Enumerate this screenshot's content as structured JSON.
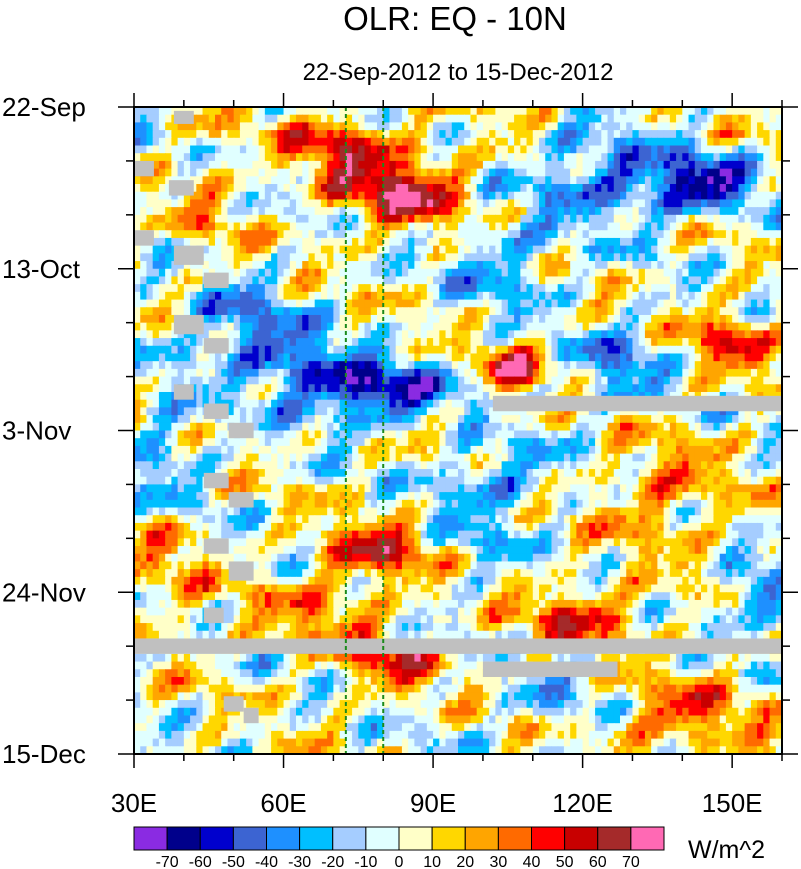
{
  "chart_data": {
    "type": "heatmap",
    "title": "OLR: EQ - 10N",
    "subtitle": "22-Sep-2012 to 15-Dec-2012",
    "x_axis": {
      "range": [
        30,
        160
      ],
      "ticks": [
        {
          "value": 30,
          "label": "30E"
        },
        {
          "value": 60,
          "label": "60E"
        },
        {
          "value": 90,
          "label": "90E"
        },
        {
          "value": 120,
          "label": "120E"
        },
        {
          "value": 150,
          "label": "150E"
        }
      ],
      "minor_step": 10
    },
    "y_axis": {
      "range_days": [
        0,
        84
      ],
      "ticks": [
        {
          "day": 0,
          "label": "22-Sep"
        },
        {
          "day": 21,
          "label": "13-Oct"
        },
        {
          "day": 42,
          "label": "3-Nov"
        },
        {
          "day": 63,
          "label": "24-Nov"
        },
        {
          "day": 84,
          "label": "15-Dec"
        }
      ],
      "minor_step_days": 7
    },
    "reference_lines_lon": [
      72.5,
      80
    ],
    "colorbar": {
      "unit": "W/m^2",
      "levels": [
        -70,
        -60,
        -50,
        -40,
        -30,
        -20,
        -10,
        0,
        10,
        20,
        30,
        40,
        50,
        60,
        70
      ],
      "colors": [
        "#8a2be2",
        "#00008b",
        "#0000cd",
        "#3c64d2",
        "#1e90ff",
        "#00bfff",
        "#a5cdff",
        "#e0ffff",
        "#ffffc8",
        "#ffd700",
        "#ffa500",
        "#ff6a00",
        "#ff0000",
        "#c80000",
        "#a52a2a",
        "#ff69b4"
      ]
    },
    "missing_color": "#c0c0c0",
    "features": [
      {
        "lon": 84,
        "day": 11,
        "value": 60,
        "sx": 9,
        "sy": 3.2
      },
      {
        "lon": 72,
        "day": 5,
        "value": 45,
        "sx": 8,
        "sy": 3
      },
      {
        "lon": 106,
        "day": 34,
        "value": 58,
        "sx": 4,
        "sy": 2.2
      },
      {
        "lon": 78,
        "day": 37,
        "value": -68,
        "sx": 10,
        "sy": 2.6
      },
      {
        "lon": 62,
        "day": 33,
        "value": -40,
        "sx": 7,
        "sy": 3
      },
      {
        "lon": 50,
        "day": 28,
        "value": -35,
        "sx": 8,
        "sy": 4
      },
      {
        "lon": 143,
        "day": 10,
        "value": -62,
        "sx": 8,
        "sy": 2.6
      },
      {
        "lon": 123,
        "day": 9,
        "value": -40,
        "sx": 9,
        "sy": 4
      },
      {
        "lon": 104,
        "day": 20,
        "value": -30,
        "sx": 7,
        "sy": 4
      },
      {
        "lon": 79,
        "day": 58,
        "value": 45,
        "sx": 9,
        "sy": 3
      },
      {
        "lon": 81,
        "day": 72,
        "value": 40,
        "sx": 8,
        "sy": 2.5
      },
      {
        "lon": 120,
        "day": 66,
        "value": 40,
        "sx": 9,
        "sy": 2.5
      },
      {
        "lon": 140,
        "day": 79,
        "value": 38,
        "sx": 10,
        "sy": 3
      },
      {
        "lon": 155,
        "day": 63,
        "value": -50,
        "sx": 4,
        "sy": 2.5
      },
      {
        "lon": 150,
        "day": 30,
        "value": 40,
        "sx": 6,
        "sy": 3
      },
      {
        "lon": 128,
        "day": 34,
        "value": -32,
        "sx": 6,
        "sy": 4
      },
      {
        "lon": 136,
        "day": 50,
        "value": 28,
        "sx": 9,
        "sy": 5
      },
      {
        "lon": 66,
        "day": 66,
        "value": 25,
        "sx": 10,
        "sy": 3
      },
      {
        "lon": 45,
        "day": 12,
        "value": 15,
        "sx": 5,
        "sy": 8
      },
      {
        "lon": 36,
        "day": 45,
        "value": -28,
        "sx": 5,
        "sy": 5
      },
      {
        "lon": 103,
        "day": 48,
        "value": -32,
        "sx": 8,
        "sy": 3
      },
      {
        "lon": 37,
        "day": 60,
        "value": 22,
        "sx": 5,
        "sy": 6
      },
      {
        "lon": 97,
        "day": 57,
        "value": -20,
        "sx": 6,
        "sy": 4
      },
      {
        "lon": 115,
        "day": 77,
        "value": -18,
        "sx": 7,
        "sy": 3
      }
    ],
    "missing_blocks": [
      {
        "lon": [
          30,
          160
        ],
        "day": [
          69,
          71
        ]
      },
      {
        "lon": [
          102,
          160
        ],
        "day": [
          37.5,
          39.5
        ]
      },
      {
        "lon": [
          100,
          127
        ],
        "day": [
          72,
          74
        ]
      },
      {
        "lon": [
          38,
          42
        ],
        "day": [
          0.5,
          2.2
        ]
      },
      {
        "lon": [
          30,
          34
        ],
        "day": [
          7,
          9
        ]
      },
      {
        "lon": [
          37,
          42
        ],
        "day": [
          9.5,
          11.5
        ]
      },
      {
        "lon": [
          30,
          34
        ],
        "day": [
          16,
          18
        ]
      },
      {
        "lon": [
          38,
          44
        ],
        "day": [
          18,
          20.5
        ]
      },
      {
        "lon": [
          44,
          49
        ],
        "day": [
          21.5,
          23.5
        ]
      },
      {
        "lon": [
          38,
          44
        ],
        "day": [
          27,
          29.5
        ]
      },
      {
        "lon": [
          44,
          49
        ],
        "day": [
          30,
          32
        ]
      },
      {
        "lon": [
          38,
          42
        ],
        "day": [
          36,
          38
        ]
      },
      {
        "lon": [
          44,
          49
        ],
        "day": [
          38.5,
          40.5
        ]
      },
      {
        "lon": [
          49,
          54
        ],
        "day": [
          41,
          43
        ]
      },
      {
        "lon": [
          44,
          49
        ],
        "day": [
          47.5,
          49.5
        ]
      },
      {
        "lon": [
          49,
          54
        ],
        "day": [
          50,
          52
        ]
      },
      {
        "lon": [
          44,
          49
        ],
        "day": [
          56,
          58
        ]
      },
      {
        "lon": [
          49,
          54
        ],
        "day": [
          59,
          61.5
        ]
      },
      {
        "lon": [
          44,
          48
        ],
        "day": [
          65,
          67
        ]
      },
      {
        "lon": [
          48,
          52
        ],
        "day": [
          76.5,
          78.5
        ]
      },
      {
        "lon": [
          52,
          55
        ],
        "day": [
          78,
          80
        ]
      }
    ]
  }
}
